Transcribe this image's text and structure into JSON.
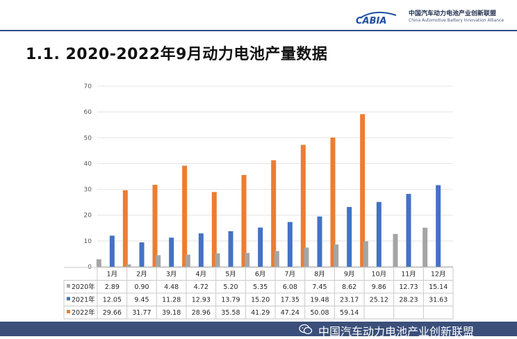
{
  "header": {
    "logo_text": "CABIA",
    "org_name_cn": "中国汽车动力电池产业创新联盟",
    "org_name_en": "China Automotive Battery Innovation Alliance"
  },
  "title": "1.1.  2020-2022年9月动力电池产量数据",
  "footer": {
    "text": "中国汽车动力电池产业创新联盟",
    "icon": "wechat-icon"
  },
  "colors": {
    "2020": "#a5a5a5",
    "2021": "#4472c4",
    "2022": "#ed7d31",
    "header_line": "#2b4b86",
    "footer_bg": "#3b4f7a"
  },
  "chart_data": {
    "type": "bar",
    "categories": [
      "1月",
      "2月",
      "3月",
      "4月",
      "5月",
      "6月",
      "7月",
      "8月",
      "9月",
      "10月",
      "11月",
      "12月"
    ],
    "series": [
      {
        "name": "2020年",
        "values": [
          2.89,
          0.9,
          4.48,
          4.72,
          5.2,
          5.35,
          6.08,
          7.45,
          8.62,
          9.86,
          12.73,
          15.14
        ],
        "labels": [
          "2.89",
          "0.90",
          "4.48",
          "4.72",
          "5.20",
          "5.35",
          "6.08",
          "7.45",
          "8.62",
          "9.86",
          "12.73",
          "15.14"
        ]
      },
      {
        "name": "2021年",
        "values": [
          12.05,
          9.45,
          11.28,
          12.93,
          13.79,
          15.2,
          17.35,
          19.48,
          23.17,
          25.12,
          28.23,
          31.63
        ],
        "labels": [
          "12.05",
          "9.45",
          "11.28",
          "12.93",
          "13.79",
          "15.20",
          "17.35",
          "19.48",
          "23.17",
          "25.12",
          "28.23",
          "31.63"
        ]
      },
      {
        "name": "2022年",
        "values": [
          29.66,
          31.77,
          39.18,
          28.96,
          35.58,
          41.29,
          47.24,
          50.08,
          59.14,
          null,
          null,
          null
        ],
        "labels": [
          "29.66",
          "31.77",
          "39.18",
          "28.96",
          "35.58",
          "41.29",
          "47.24",
          "50.08",
          "59.14",
          "",
          "",
          ""
        ]
      }
    ],
    "yticks": [
      "0",
      "10",
      "20",
      "30",
      "40",
      "50",
      "60",
      "70"
    ],
    "ylim": [
      0,
      70
    ],
    "grid": true,
    "legend": "data-table"
  }
}
